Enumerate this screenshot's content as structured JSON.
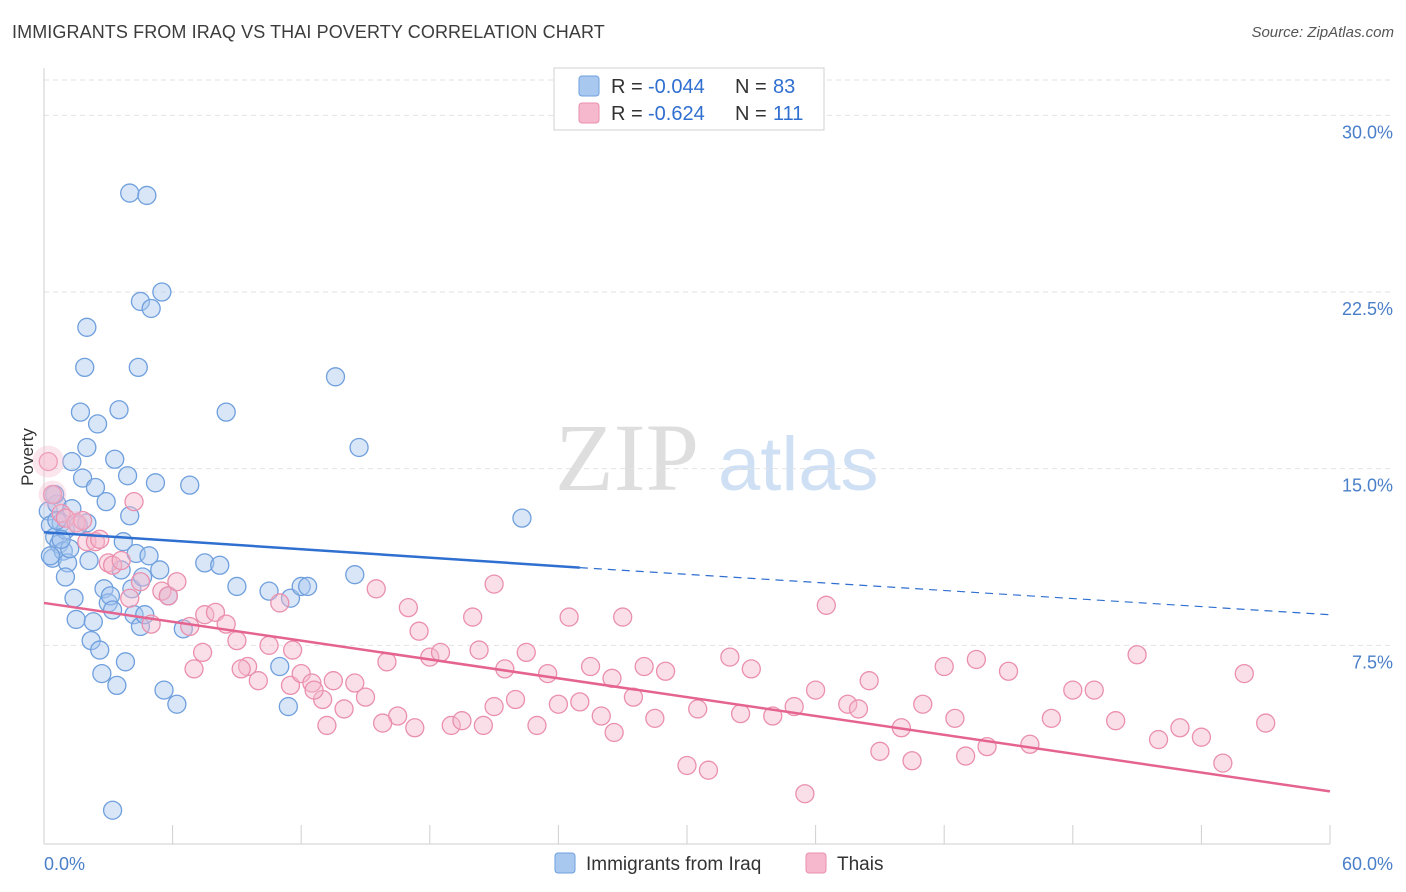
{
  "title": "IMMIGRANTS FROM IRAQ VS THAI POVERTY CORRELATION CHART",
  "source": "Source: ZipAtlas.com",
  "watermark": {
    "zip": "ZIP",
    "atlas": "atlas"
  },
  "legend_top": {
    "rows": [
      {
        "r_label": "R =",
        "r_value": "-0.044",
        "n_label": "N =",
        "n_value": "83"
      },
      {
        "r_label": "R =",
        "r_value": "-0.624",
        "n_label": "N =",
        "n_value": "111"
      }
    ]
  },
  "colors": {
    "iraq_fill": "#a9c8f0",
    "iraq_stroke": "#6f9fdd",
    "iraq_line": "#2f6fd0",
    "thai_fill": "#f5b8cc",
    "thai_stroke": "#ea8fae",
    "thai_line": "#e5648f",
    "axis_text": "#4a7fc9",
    "grid": "#e2e2e2"
  },
  "chart_data": {
    "type": "scatter",
    "xlabel": "",
    "ylabel": "Poverty",
    "xlim": [
      0,
      60
    ],
    "ylim": [
      0,
      31.5
    ],
    "x_tick_labels": [
      "0.0%",
      "60.0%"
    ],
    "y_ticks": [
      7.5,
      15.0,
      22.5,
      30.0
    ],
    "y_tick_labels": [
      "7.5%",
      "15.0%",
      "22.5%",
      "30.0%"
    ],
    "grid": true,
    "legend": "top-center",
    "series": [
      {
        "name": "Immigrants from Iraq",
        "r": -0.044,
        "n": 83,
        "trend": {
          "x0": 0.0,
          "y0": 12.3,
          "x1": 25.0,
          "y1": 10.8,
          "x_dash_end": 60.0,
          "y_dash_end": 8.8
        },
        "points": [
          [
            0.2,
            13.2
          ],
          [
            0.3,
            12.6
          ],
          [
            0.4,
            11.2
          ],
          [
            0.5,
            12.1
          ],
          [
            0.6,
            13.5
          ],
          [
            0.7,
            11.8
          ],
          [
            0.8,
            12.7
          ],
          [
            0.9,
            11.5
          ],
          [
            1.0,
            12.4
          ],
          [
            1.1,
            11.0
          ],
          [
            1.2,
            11.6
          ],
          [
            1.3,
            15.3
          ],
          [
            1.4,
            9.5
          ],
          [
            1.5,
            8.6
          ],
          [
            1.6,
            12.6
          ],
          [
            1.7,
            17.4
          ],
          [
            1.8,
            14.6
          ],
          [
            1.9,
            19.3
          ],
          [
            2.0,
            15.9
          ],
          [
            2.1,
            11.1
          ],
          [
            2.2,
            7.7
          ],
          [
            2.3,
            8.5
          ],
          [
            2.4,
            14.2
          ],
          [
            2.5,
            16.9
          ],
          [
            2.6,
            7.3
          ],
          [
            2.7,
            6.3
          ],
          [
            2.8,
            9.9
          ],
          [
            2.9,
            13.6
          ],
          [
            3.0,
            9.3
          ],
          [
            3.1,
            9.6
          ],
          [
            3.2,
            9.0
          ],
          [
            3.3,
            15.4
          ],
          [
            3.4,
            5.8
          ],
          [
            3.5,
            17.5
          ],
          [
            3.6,
            10.7
          ],
          [
            3.7,
            11.9
          ],
          [
            3.8,
            6.8
          ],
          [
            3.9,
            14.7
          ],
          [
            4.0,
            13.0
          ],
          [
            4.1,
            9.9
          ],
          [
            4.2,
            8.8
          ],
          [
            4.3,
            11.4
          ],
          [
            4.4,
            19.3
          ],
          [
            4.5,
            8.3
          ],
          [
            4.6,
            10.4
          ],
          [
            4.7,
            8.8
          ],
          [
            4.9,
            11.3
          ],
          [
            5.2,
            14.4
          ],
          [
            5.4,
            10.7
          ],
          [
            5.6,
            5.6
          ],
          [
            5.8,
            9.6
          ],
          [
            6.2,
            5.0
          ],
          [
            6.5,
            8.2
          ],
          [
            6.8,
            14.3
          ],
          [
            7.5,
            11.0
          ],
          [
            8.2,
            10.9
          ],
          [
            8.5,
            17.4
          ],
          [
            9.0,
            10.0
          ],
          [
            10.5,
            9.8
          ],
          [
            11.0,
            6.6
          ],
          [
            11.4,
            4.9
          ],
          [
            11.5,
            9.5
          ],
          [
            12.0,
            10.0
          ],
          [
            12.3,
            10.0
          ],
          [
            13.6,
            18.9
          ],
          [
            14.5,
            10.5
          ],
          [
            14.7,
            15.9
          ],
          [
            22.3,
            12.9
          ],
          [
            0.3,
            11.3
          ],
          [
            0.5,
            13.9
          ],
          [
            0.8,
            12.0
          ],
          [
            1.0,
            10.4
          ],
          [
            1.3,
            13.3
          ],
          [
            0.4,
            13.9
          ],
          [
            0.6,
            12.8
          ],
          [
            2.0,
            12.7
          ],
          [
            4.0,
            26.7
          ],
          [
            2.0,
            21.0
          ],
          [
            4.5,
            22.1
          ],
          [
            5.0,
            21.8
          ],
          [
            4.8,
            26.6
          ],
          [
            5.5,
            22.5
          ],
          [
            3.2,
            0.5
          ]
        ]
      },
      {
        "name": "Thais",
        "r": -0.624,
        "n": 111,
        "trend": {
          "x0": 0.0,
          "y0": 9.3,
          "x1": 60.0,
          "y1": 1.3
        },
        "points": [
          [
            0.2,
            15.3
          ],
          [
            0.4,
            13.9
          ],
          [
            0.8,
            13.1
          ],
          [
            1.0,
            12.9
          ],
          [
            1.5,
            12.7
          ],
          [
            1.8,
            12.8
          ],
          [
            2.0,
            11.9
          ],
          [
            2.4,
            11.9
          ],
          [
            2.6,
            12.0
          ],
          [
            3.0,
            11.0
          ],
          [
            3.2,
            10.9
          ],
          [
            3.6,
            11.1
          ],
          [
            4.0,
            9.5
          ],
          [
            4.2,
            13.6
          ],
          [
            4.5,
            10.2
          ],
          [
            5.0,
            8.4
          ],
          [
            5.5,
            9.8
          ],
          [
            5.8,
            9.6
          ],
          [
            6.2,
            10.2
          ],
          [
            6.8,
            8.3
          ],
          [
            7.0,
            6.5
          ],
          [
            7.5,
            8.8
          ],
          [
            8.0,
            8.9
          ],
          [
            8.5,
            8.4
          ],
          [
            9.0,
            7.7
          ],
          [
            9.5,
            6.6
          ],
          [
            10.0,
            6.0
          ],
          [
            10.5,
            7.5
          ],
          [
            11.0,
            9.3
          ],
          [
            11.5,
            5.8
          ],
          [
            12.0,
            6.3
          ],
          [
            12.5,
            5.9
          ],
          [
            13.0,
            5.2
          ],
          [
            13.5,
            6.0
          ],
          [
            14.0,
            4.8
          ],
          [
            14.5,
            5.9
          ],
          [
            15.0,
            5.3
          ],
          [
            15.5,
            9.9
          ],
          [
            16.0,
            6.8
          ],
          [
            16.5,
            4.5
          ],
          [
            17.0,
            9.1
          ],
          [
            17.5,
            8.1
          ],
          [
            18.0,
            7.0
          ],
          [
            18.5,
            7.2
          ],
          [
            19.0,
            4.1
          ],
          [
            19.5,
            4.3
          ],
          [
            20.0,
            8.7
          ],
          [
            20.5,
            4.1
          ],
          [
            21.0,
            10.1
          ],
          [
            21.5,
            6.5
          ],
          [
            22.0,
            5.2
          ],
          [
            22.5,
            7.2
          ],
          [
            23.0,
            4.1
          ],
          [
            23.5,
            6.3
          ],
          [
            24.0,
            5.0
          ],
          [
            24.5,
            8.7
          ],
          [
            25.0,
            5.1
          ],
          [
            25.5,
            6.6
          ],
          [
            26.0,
            4.5
          ],
          [
            26.5,
            6.1
          ],
          [
            27.0,
            8.7
          ],
          [
            27.5,
            5.3
          ],
          [
            28.0,
            6.6
          ],
          [
            28.5,
            4.4
          ],
          [
            29.0,
            6.4
          ],
          [
            30.0,
            2.4
          ],
          [
            30.5,
            4.8
          ],
          [
            31.0,
            2.2
          ],
          [
            32.0,
            7.0
          ],
          [
            32.5,
            4.6
          ],
          [
            33.0,
            6.5
          ],
          [
            34.0,
            4.5
          ],
          [
            35.0,
            4.9
          ],
          [
            35.5,
            1.2
          ],
          [
            36.0,
            5.6
          ],
          [
            36.5,
            9.2
          ],
          [
            37.5,
            5.0
          ],
          [
            38.0,
            4.8
          ],
          [
            38.5,
            6.0
          ],
          [
            39.0,
            3.0
          ],
          [
            40.0,
            4.0
          ],
          [
            40.5,
            2.6
          ],
          [
            41.0,
            5.0
          ],
          [
            42.0,
            6.6
          ],
          [
            42.5,
            4.4
          ],
          [
            43.0,
            2.8
          ],
          [
            43.5,
            6.9
          ],
          [
            44.0,
            3.2
          ],
          [
            45.0,
            6.4
          ],
          [
            46.0,
            3.3
          ],
          [
            47.0,
            4.4
          ],
          [
            48.0,
            5.6
          ],
          [
            49.0,
            5.6
          ],
          [
            50.0,
            4.3
          ],
          [
            51.0,
            7.1
          ],
          [
            52.0,
            3.5
          ],
          [
            53.0,
            4.0
          ],
          [
            54.0,
            3.6
          ],
          [
            55.0,
            2.5
          ],
          [
            56.0,
            6.3
          ],
          [
            57.0,
            4.2
          ],
          [
            20.3,
            7.3
          ],
          [
            26.6,
            3.8
          ],
          [
            13.2,
            4.1
          ],
          [
            9.2,
            6.5
          ],
          [
            7.4,
            7.2
          ],
          [
            11.6,
            7.3
          ],
          [
            12.6,
            5.6
          ],
          [
            17.3,
            4.0
          ],
          [
            21.0,
            4.9
          ],
          [
            15.8,
            4.2
          ]
        ]
      }
    ]
  },
  "bottom_legend": [
    {
      "label": "Immigrants from Iraq"
    },
    {
      "label": "Thais"
    }
  ]
}
